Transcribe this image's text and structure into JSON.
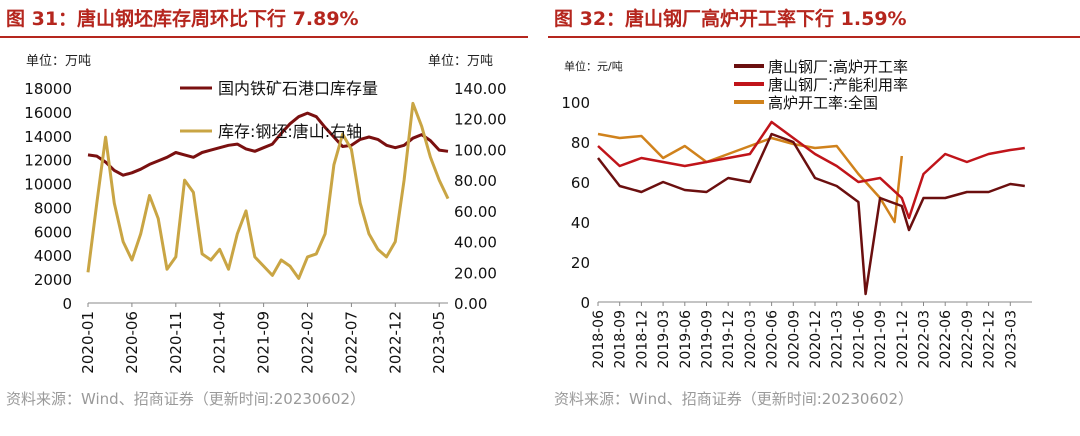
{
  "left": {
    "title": "图 31：唐山钢坯库存周环比下行 7.89%",
    "unit_left": "单位：万吨",
    "unit_right": "单位：万吨",
    "source": "资料来源：Wind、招商证券（更新时间:20230602）",
    "colors": {
      "ore": "#7a1010",
      "billet": "#c9a544"
    }
  },
  "right": {
    "title": "图 32：唐山钢厂高炉开工率下行 1.59%",
    "unit": "单位：元/吨",
    "source": "资料来源：Wind、招商证券（更新时间:20230602）",
    "colors": {
      "ts_bf": "#6b0f0f",
      "ts_cap": "#c0141a",
      "nat": "#d0821c"
    }
  },
  "chart_data": [
    {
      "type": "line",
      "title": "图 31：唐山钢坯库存周环比下行 7.89%",
      "x_ticks": [
        "2020-01",
        "2020-06",
        "2020-11",
        "2021-04",
        "2021-09",
        "2022-02",
        "2022-07",
        "2022-12",
        "2023-05"
      ],
      "x_range": [
        "2020-01",
        "2023-06"
      ],
      "ylim_left": [
        0,
        18000
      ],
      "yticks_left": [
        "0",
        "2000",
        "4000",
        "6000",
        "8000",
        "10000",
        "12000",
        "14000",
        "16000",
        "18000"
      ],
      "ylim_right": [
        0,
        140
      ],
      "yticks_right": [
        "0.00",
        "20.00",
        "40.00",
        "60.00",
        "80.00",
        "100.00",
        "120.00",
        "140.00"
      ],
      "legend": "top",
      "grid": false,
      "series": [
        {
          "name": "国内铁矿石港口库存量",
          "axis": "left",
          "x": [
            "2020-01",
            "2020-02",
            "2020-03",
            "2020-04",
            "2020-05",
            "2020-06",
            "2020-07",
            "2020-08",
            "2020-09",
            "2020-10",
            "2020-11",
            "2020-12",
            "2021-01",
            "2021-02",
            "2021-03",
            "2021-04",
            "2021-05",
            "2021-06",
            "2021-07",
            "2021-08",
            "2021-09",
            "2021-10",
            "2021-11",
            "2021-12",
            "2022-01",
            "2022-02",
            "2022-03",
            "2022-04",
            "2022-05",
            "2022-06",
            "2022-07",
            "2022-08",
            "2022-09",
            "2022-10",
            "2022-11",
            "2022-12",
            "2023-01",
            "2023-02",
            "2023-03",
            "2023-04",
            "2023-05",
            "2023-06"
          ],
          "values": [
            12400,
            12300,
            11800,
            11100,
            10700,
            10900,
            11200,
            11600,
            11900,
            12200,
            12600,
            12400,
            12200,
            12600,
            12800,
            13000,
            13200,
            13300,
            12900,
            12700,
            13000,
            13300,
            14200,
            15000,
            15600,
            15900,
            15600,
            14700,
            13900,
            13100,
            13200,
            13700,
            13900,
            13700,
            13200,
            13000,
            13200,
            13800,
            14100,
            13600,
            12800,
            12700
          ]
        },
        {
          "name": "库存:钢坯:唐山:右轴",
          "axis": "right",
          "x": [
            "2020-01",
            "2020-02",
            "2020-03",
            "2020-04",
            "2020-05",
            "2020-06",
            "2020-07",
            "2020-08",
            "2020-09",
            "2020-10",
            "2020-11",
            "2020-12",
            "2021-01",
            "2021-02",
            "2021-03",
            "2021-04",
            "2021-05",
            "2021-06",
            "2021-07",
            "2021-08",
            "2021-09",
            "2021-10",
            "2021-11",
            "2021-12",
            "2022-01",
            "2022-02",
            "2022-03",
            "2022-04",
            "2022-05",
            "2022-06",
            "2022-07",
            "2022-08",
            "2022-09",
            "2022-10",
            "2022-11",
            "2022-12",
            "2023-01",
            "2023-02",
            "2023-03",
            "2023-04",
            "2023-05",
            "2023-06"
          ],
          "values": [
            20,
            65,
            108,
            65,
            40,
            28,
            45,
            70,
            55,
            22,
            30,
            80,
            72,
            32,
            28,
            35,
            22,
            45,
            60,
            30,
            24,
            18,
            28,
            24,
            16,
            30,
            32,
            45,
            90,
            110,
            100,
            65,
            45,
            35,
            30,
            40,
            80,
            130,
            115,
            95,
            80,
            68
          ]
        }
      ]
    },
    {
      "type": "line",
      "title": "图 32：唐山钢厂高炉开工率下行 1.59%",
      "x_ticks": [
        "2018-06",
        "2018-09",
        "2018-12",
        "2019-03",
        "2019-06",
        "2019-09",
        "2019-12",
        "2020-03",
        "2020-06",
        "2020-09",
        "2020-12",
        "2021-03",
        "2021-06",
        "2021-09",
        "2021-12",
        "2022-03",
        "2022-06",
        "2022-09",
        "2022-12",
        "2023-03"
      ],
      "ylim": [
        0,
        100
      ],
      "yticks": [
        "0",
        "20",
        "40",
        "60",
        "80",
        "100"
      ],
      "legend": "top",
      "grid": false,
      "series": [
        {
          "name": "唐山钢厂:高炉开工率",
          "x": [
            "2018-06",
            "2018-09",
            "2018-12",
            "2019-03",
            "2019-06",
            "2019-09",
            "2019-12",
            "2020-03",
            "2020-06",
            "2020-09",
            "2020-12",
            "2021-03",
            "2021-06",
            "2021-07",
            "2021-09",
            "2021-12",
            "2022-01",
            "2022-03",
            "2022-06",
            "2022-09",
            "2022-12",
            "2023-03",
            "2023-05"
          ],
          "values": [
            72,
            58,
            55,
            60,
            56,
            55,
            62,
            60,
            84,
            80,
            62,
            58,
            50,
            4,
            52,
            48,
            36,
            52,
            52,
            55,
            55,
            59,
            58
          ]
        },
        {
          "name": "唐山钢厂:产能利用率",
          "x": [
            "2018-06",
            "2018-09",
            "2018-12",
            "2019-03",
            "2019-06",
            "2019-09",
            "2019-12",
            "2020-03",
            "2020-06",
            "2020-09",
            "2020-12",
            "2021-03",
            "2021-06",
            "2021-09",
            "2021-12",
            "2022-01",
            "2022-03",
            "2022-06",
            "2022-09",
            "2022-12",
            "2023-03",
            "2023-05"
          ],
          "values": [
            78,
            68,
            72,
            70,
            68,
            70,
            72,
            74,
            90,
            82,
            74,
            68,
            60,
            62,
            52,
            42,
            64,
            74,
            70,
            74,
            76,
            77
          ]
        },
        {
          "name": "高炉开工率:全国",
          "x": [
            "2018-06",
            "2018-09",
            "2018-12",
            "2019-03",
            "2019-06",
            "2019-09",
            "2019-12",
            "2020-03",
            "2020-06",
            "2020-09",
            "2020-12",
            "2021-03",
            "2021-06",
            "2021-09",
            "2021-11",
            "2021-12"
          ],
          "values": [
            84,
            82,
            83,
            72,
            78,
            70,
            74,
            78,
            82,
            79,
            77,
            78,
            64,
            52,
            40,
            73
          ]
        }
      ]
    }
  ]
}
